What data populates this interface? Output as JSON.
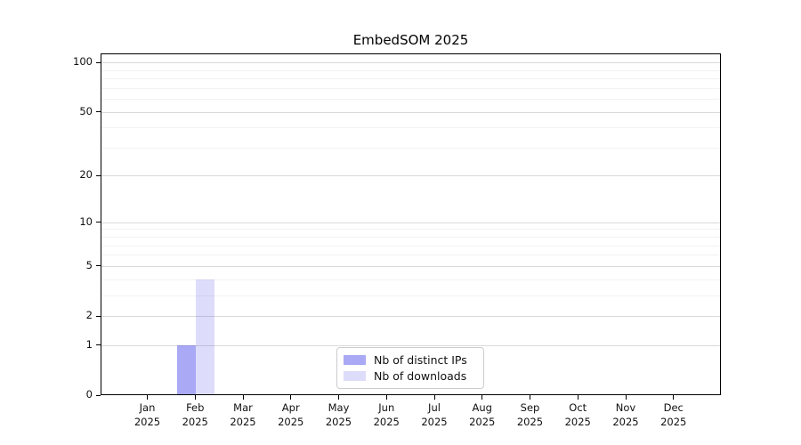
{
  "chart_data": {
    "type": "bar",
    "title": "EmbedSOM 2025",
    "x_categories": [
      {
        "month": "Jan",
        "year": "2025"
      },
      {
        "month": "Feb",
        "year": "2025"
      },
      {
        "month": "Mar",
        "year": "2025"
      },
      {
        "month": "Apr",
        "year": "2025"
      },
      {
        "month": "May",
        "year": "2025"
      },
      {
        "month": "Jun",
        "year": "2025"
      },
      {
        "month": "Jul",
        "year": "2025"
      },
      {
        "month": "Aug",
        "year": "2025"
      },
      {
        "month": "Sep",
        "year": "2025"
      },
      {
        "month": "Oct",
        "year": "2025"
      },
      {
        "month": "Nov",
        "year": "2025"
      },
      {
        "month": "Dec",
        "year": "2025"
      }
    ],
    "series": [
      {
        "name": "Nb of distinct IPs",
        "color": "rgba(64, 64, 233, 0.45)",
        "values": [
          0,
          1,
          0,
          0,
          0,
          0,
          0,
          0,
          0,
          0,
          0,
          0
        ]
      },
      {
        "name": "Nb of downloads",
        "color": "rgba(64, 64, 233, 0.18)",
        "values": [
          0,
          4,
          0,
          0,
          0,
          0,
          0,
          0,
          0,
          0,
          0,
          0
        ]
      }
    ],
    "y_axis": {
      "scale": "log1p",
      "major_ticks": [
        0,
        1,
        2,
        5,
        10,
        20,
        50,
        100
      ],
      "minor_ticks": [
        3,
        4,
        6,
        7,
        8,
        9,
        30,
        40,
        60,
        70,
        80,
        90
      ],
      "range": [
        0,
        113
      ]
    },
    "legend_position": "lower center",
    "grid": true,
    "colors": {
      "major_grid": "#d9d9d9",
      "minor_grid": "#f2f2f2",
      "spine": "#000000"
    }
  }
}
